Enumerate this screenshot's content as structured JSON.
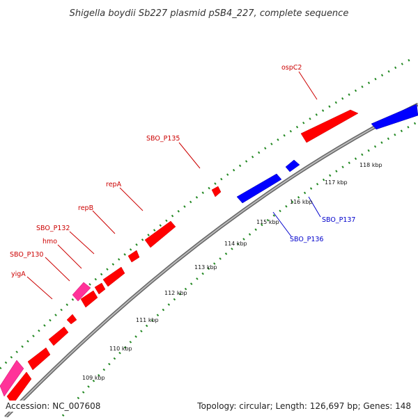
{
  "title": "Shigella boydii Sb227 plasmid pSB4_227, complete sequence",
  "footer": {
    "accession": "Accession: NC_007608",
    "summary": "Topology: circular; Length: 126,697 bp; Genes: 148"
  },
  "colors": {
    "forward_gene": "#ff0000",
    "reverse_gene": "#0000ff",
    "other_gene": "#ff3399",
    "tick": "#228822",
    "backbone": "#888888"
  },
  "scale_labels": [
    "109 kbp",
    "110 kbp",
    "111 kbp",
    "112 kbp",
    "113 kbp",
    "114 kbp",
    "115 kbp",
    "116 kbp",
    "117 kbp",
    "118 kbp"
  ],
  "gene_labels": [
    {
      "name": "ospC2",
      "strand": "forward"
    },
    {
      "name": "SBO_P135",
      "strand": "forward"
    },
    {
      "name": "repA",
      "strand": "forward"
    },
    {
      "name": "repB",
      "strand": "forward"
    },
    {
      "name": "SBO_P132",
      "strand": "forward"
    },
    {
      "name": "hmo",
      "strand": "forward"
    },
    {
      "name": "SBO_P130",
      "strand": "forward"
    },
    {
      "name": "yigA",
      "strand": "forward"
    },
    {
      "name": "SBO_P137",
      "strand": "reverse"
    },
    {
      "name": "SBO_P136",
      "strand": "reverse"
    }
  ]
}
